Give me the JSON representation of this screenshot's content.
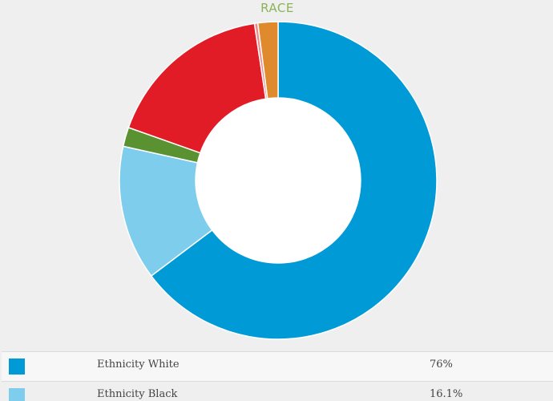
{
  "chart_data": {
    "type": "pie",
    "title": "RACE",
    "slices": [
      {
        "label": "Ethnicity White",
        "value": 76,
        "color": "#009bd6"
      },
      {
        "label": "Ethnicity Black",
        "value": 16.1,
        "color": "#7fcdec"
      },
      {
        "label": "",
        "value": 2.3,
        "color": "#5a9232"
      },
      {
        "label": "",
        "value": 20.2,
        "color": "#e21c26"
      },
      {
        "label": "",
        "value": 0.4,
        "color": "#f08a8e"
      },
      {
        "label": "",
        "value": 2.4,
        "color": "#e08a2e"
      }
    ],
    "inner_radius_ratio": 0.52
  },
  "legend": {
    "items": [
      {
        "label": "Ethnicity White",
        "value": "76%",
        "color": "#009bd6"
      },
      {
        "label": "Ethnicity Black",
        "value": "16.1%",
        "color": "#7fcdec"
      }
    ]
  }
}
